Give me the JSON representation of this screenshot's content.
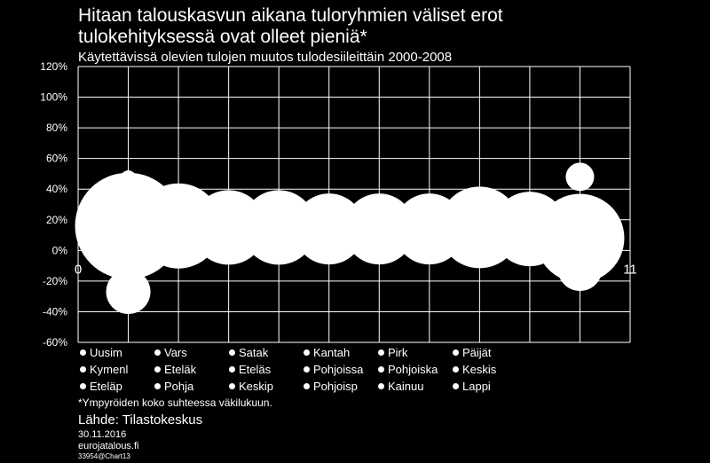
{
  "chart_data": {
    "type": "bubble",
    "title": "Hitaan talouskasvun aikana tuloryhmien väliset erot tulokehityksessä ovat olleet pieniä*",
    "title_lines": [
      "Hitaan talouskasvun aikana tuloryhmien väliset erot",
      "tulokehityksessä ovat olleet pieniä*"
    ],
    "subtitle": "Käytettävissä olevien tulojen muutos tulodesiileittäin 2000-2008",
    "ylim": [
      -60,
      120
    ],
    "xlim": [
      0,
      11
    ],
    "y_ticks": [
      "120%",
      "100%",
      "80%",
      "60%",
      "40%",
      "20%",
      "0%",
      "-20%",
      "-40%",
      "-60%"
    ],
    "x_ticks_visible": [
      "0",
      "11"
    ],
    "grid": true,
    "legend_position": "bottom",
    "legend": [
      "Uusim",
      "Vars",
      "Satak",
      "Kantah",
      "Pirk",
      "Päijät",
      "Kymenl",
      "Eteläk",
      "Eteläs",
      "Pohjoissa",
      "Pohjoiska",
      "Keskis",
      "Eteläp",
      "Pohja",
      "Keskip",
      "Pohjoisp",
      "Kainuu",
      "Lappi"
    ],
    "points": [
      {
        "x": 1,
        "y": 16,
        "size": 60
      },
      {
        "x": 2,
        "y": 16,
        "size": 48
      },
      {
        "x": 3,
        "y": 15,
        "size": 42
      },
      {
        "x": 4,
        "y": 15,
        "size": 42
      },
      {
        "x": 5,
        "y": 14,
        "size": 40
      },
      {
        "x": 6,
        "y": 14,
        "size": 40
      },
      {
        "x": 7,
        "y": 14,
        "size": 40
      },
      {
        "x": 8,
        "y": 15,
        "size": 46
      },
      {
        "x": 9,
        "y": 14,
        "size": 42
      },
      {
        "x": 10,
        "y": 8,
        "size": 50
      },
      {
        "x": 1,
        "y": -27,
        "size": 25
      },
      {
        "x": 1,
        "y": 47,
        "size": 9
      },
      {
        "x": 10,
        "y": 48,
        "size": 16
      },
      {
        "x": 10,
        "y": -12,
        "size": 25
      }
    ]
  },
  "footnote": "*Ympyröiden koko suhteessa väkilukuun.",
  "source": "Lähde: Tilastokeskus",
  "date": "30.11.2016",
  "site": "eurojatalous.fi",
  "chart_id": "33954@Chart13",
  "colors": {
    "background": "#000000",
    "foreground": "#ffffff",
    "grid": "#ffffff"
  }
}
